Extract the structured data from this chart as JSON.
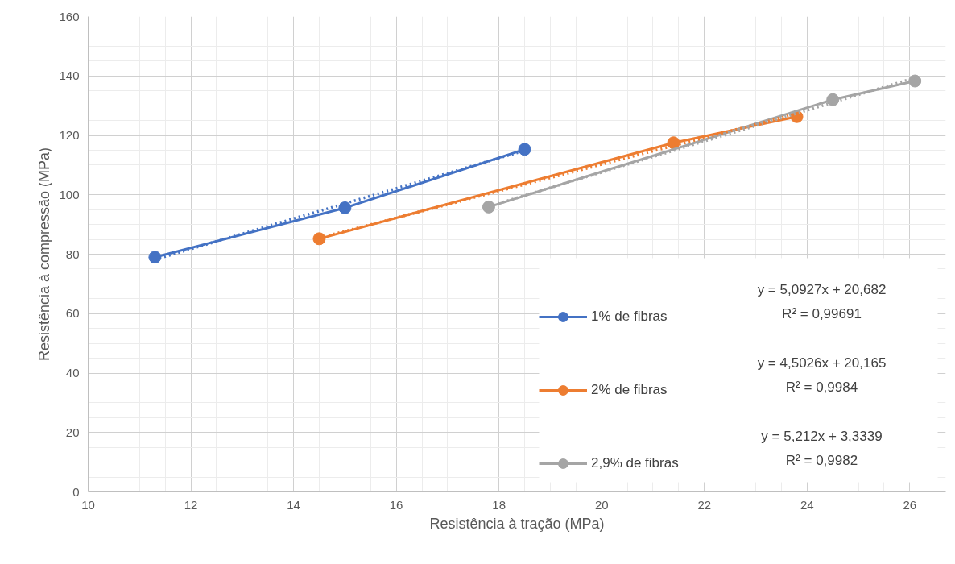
{
  "chart_data": {
    "type": "line",
    "xlabel": "Resistência à tração (MPa)",
    "ylabel": "Resistência à compressão (MPa)",
    "xlim": [
      10,
      26.7
    ],
    "xticks": [
      10,
      12,
      14,
      16,
      18,
      20,
      22,
      24,
      26
    ],
    "ylim": [
      0,
      160
    ],
    "yticks": [
      0,
      20,
      40,
      60,
      80,
      100,
      120,
      140,
      160
    ],
    "grid": true,
    "legend": "bottom right",
    "marker": "circle",
    "line_style": "solid",
    "series": [
      {
        "name": "1% de fibras",
        "color": "#4472c4",
        "x": [
          11.3,
          15.0,
          18.5
        ],
        "values": [
          79,
          95.6,
          115.3
        ]
      },
      {
        "name": "2% de fibras",
        "color": "#ed7d31",
        "x": [
          14.5,
          21.4,
          23.8
        ],
        "values": [
          85.2,
          117.5,
          126.3
        ]
      },
      {
        "name": "2,9% de fibras",
        "color": "#a5a5a5",
        "x": [
          17.8,
          24.5,
          26.1
        ],
        "values": [
          95.9,
          132,
          138.3
        ]
      },
      {
        "type": "line",
        "color": "#4472c4",
        "line_style": "dotted",
        "marker": "none",
        "x": [
          11.3,
          18.5
        ],
        "values": [
          78.2,
          114.9
        ]
      },
      {
        "type": "line",
        "color": "#ed7d31",
        "line_style": "dotted",
        "marker": "none",
        "x": [
          14.5,
          23.8
        ],
        "values": [
          85.5,
          127.3
        ]
      },
      {
        "type": "line",
        "color": "#a5a5a5",
        "line_style": "dotted",
        "marker": "none",
        "x": [
          17.8,
          26.1
        ],
        "values": [
          96.1,
          139.4
        ]
      }
    ],
    "annotations": [
      "y = 5,0927x + 20,682",
      "R² = 0,99691",
      "y = 4,5026x + 20,165",
      "R² = 0,9984",
      "y = 5,212x + 3,3339",
      "R² = 0,9982"
    ]
  }
}
